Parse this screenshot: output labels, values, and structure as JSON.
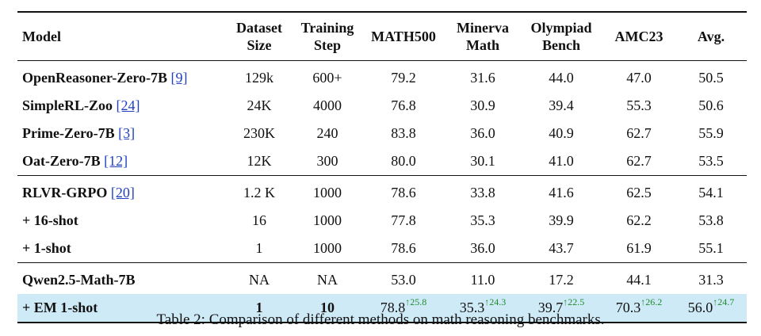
{
  "headers": [
    {
      "lines": [
        "Model"
      ]
    },
    {
      "lines": [
        "Dataset",
        "Size"
      ]
    },
    {
      "lines": [
        "Training",
        "Step"
      ]
    },
    {
      "lines": [
        "MATH500"
      ]
    },
    {
      "lines": [
        "Minerva",
        "Math"
      ]
    },
    {
      "lines": [
        "Olympiad",
        "Bench"
      ]
    },
    {
      "lines": [
        "AMC23"
      ]
    },
    {
      "lines": [
        "Avg."
      ]
    }
  ],
  "groups": [
    [
      {
        "model": "OpenReasoner-Zero-7B",
        "ref": "[9]",
        "cells": [
          "129k",
          "600+",
          "79.2",
          "31.6",
          "44.0",
          "47.0",
          "50.5"
        ]
      },
      {
        "model": "SimpleRL-Zoo",
        "ref": "[24]",
        "cells": [
          "24K",
          "4000",
          "76.8",
          "30.9",
          "39.4",
          "55.3",
          "50.6"
        ]
      },
      {
        "model": "Prime-Zero-7B",
        "ref": "[3]",
        "cells": [
          "230K",
          "240",
          "83.8",
          "36.0",
          "40.9",
          "62.7",
          "55.9"
        ]
      },
      {
        "model": "Oat-Zero-7B",
        "ref": "[12]",
        "cells": [
          "12K",
          "300",
          "80.0",
          "30.1",
          "41.0",
          "62.7",
          "53.5"
        ]
      }
    ],
    [
      {
        "model": "RLVR-GRPO",
        "ref": "[20]",
        "cells": [
          "1.2 K",
          "1000",
          "78.6",
          "33.8",
          "41.6",
          "62.5",
          "54.1"
        ]
      },
      {
        "model": "+ 16-shot",
        "ref": "",
        "cells": [
          "16",
          "1000",
          "77.8",
          "35.3",
          "39.9",
          "62.2",
          "53.8"
        ]
      },
      {
        "model": "+ 1-shot",
        "ref": "",
        "cells": [
          "1",
          "1000",
          "78.6",
          "36.0",
          "43.7",
          "61.9",
          "55.1"
        ]
      }
    ],
    [
      {
        "model": "Qwen2.5-Math-7B",
        "ref": "",
        "cells": [
          "NA",
          "NA",
          "53.0",
          "11.0",
          "17.2",
          "44.1",
          "31.3"
        ]
      },
      {
        "model": "+ EM 1-shot",
        "ref": "",
        "highlight": true,
        "cells": [
          "1",
          "10",
          "78.8",
          "35.3",
          "39.7",
          "70.3",
          "56.0"
        ],
        "gains": [
          "",
          "",
          "↑25.8",
          "↑24.3",
          "↑22.5",
          "↑26.2",
          "↑24.7"
        ]
      }
    ]
  ],
  "caption": "Table 2: Comparison of different methods on math reasoning benchmarks.",
  "colors": {
    "highlight": "#cfeaf7",
    "gain": "#1f8a2f",
    "ref": "#1f3fbf"
  }
}
